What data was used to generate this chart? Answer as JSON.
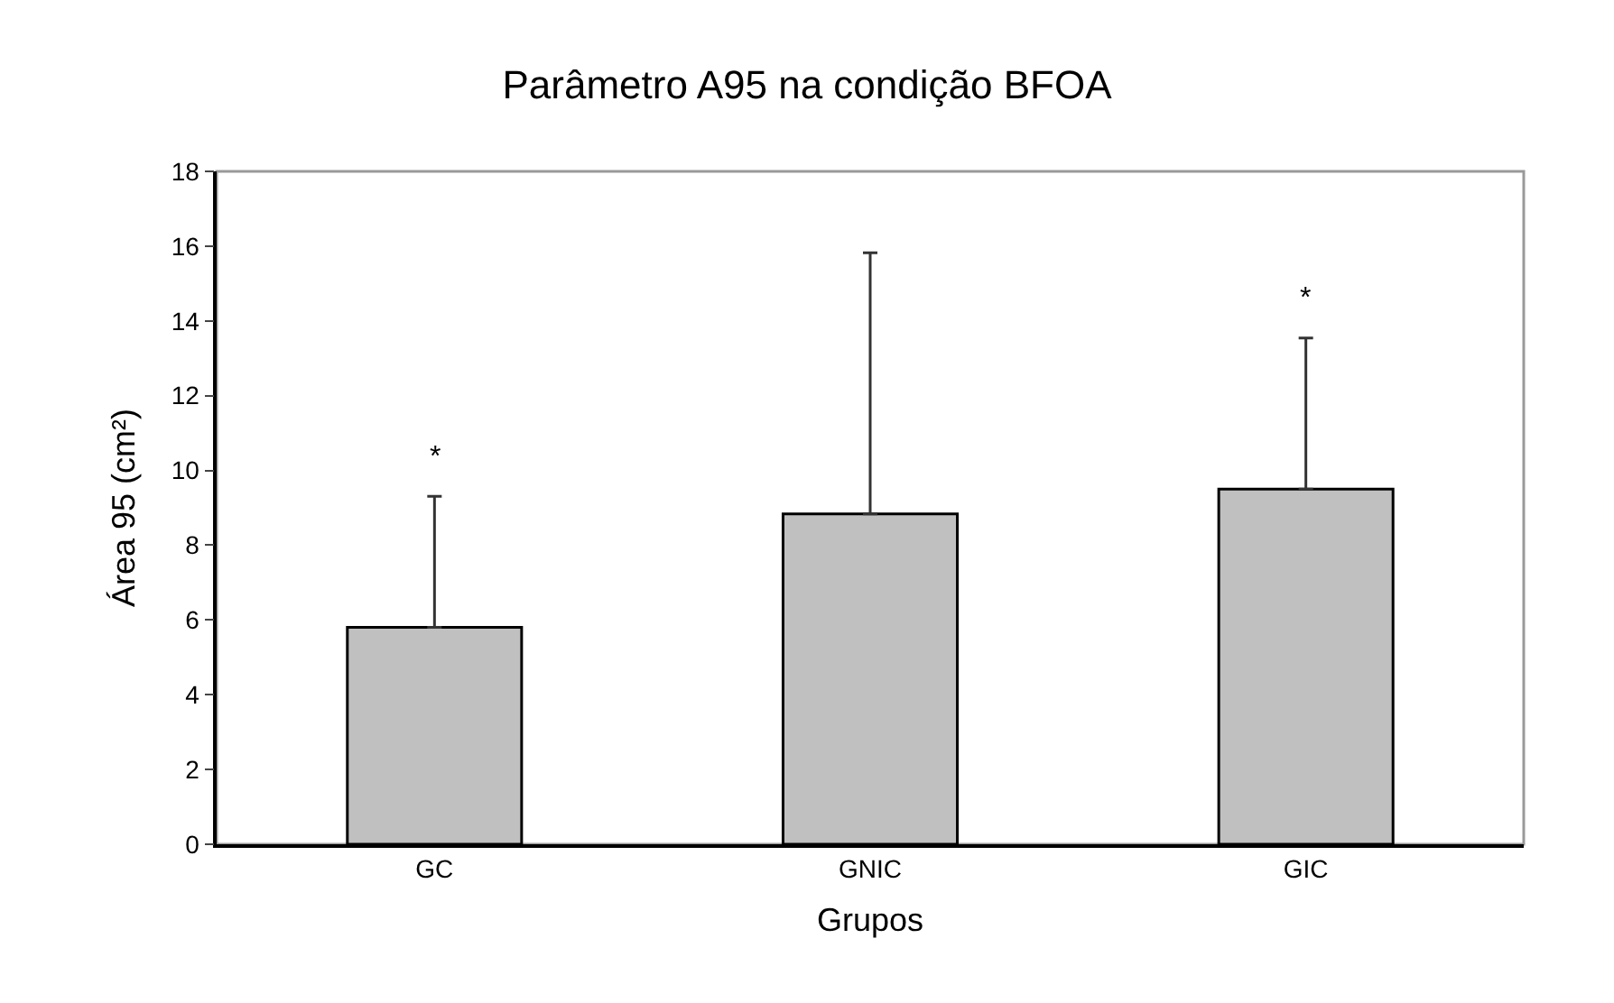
{
  "chart_data": {
    "type": "bar",
    "title": "Parâmetro A95 na condição BFOA",
    "xlabel": "Grupos",
    "ylabel": "Área 95 (cm²)",
    "categories": [
      "GC",
      "GNIC",
      "GIC"
    ],
    "values": [
      5.8,
      8.84,
      9.5
    ],
    "errors": [
      [
        5.8,
        9.31
      ],
      [
        8.84,
        15.82
      ],
      [
        9.5,
        13.54
      ]
    ],
    "color": "#c0c0c0",
    "ylim": [
      0,
      18
    ],
    "yticks": [
      0,
      2,
      4,
      6,
      8,
      10,
      12,
      14,
      16,
      18
    ],
    "grid": false,
    "legend": false,
    "annotations": [
      "*",
      "*"
    ]
  }
}
